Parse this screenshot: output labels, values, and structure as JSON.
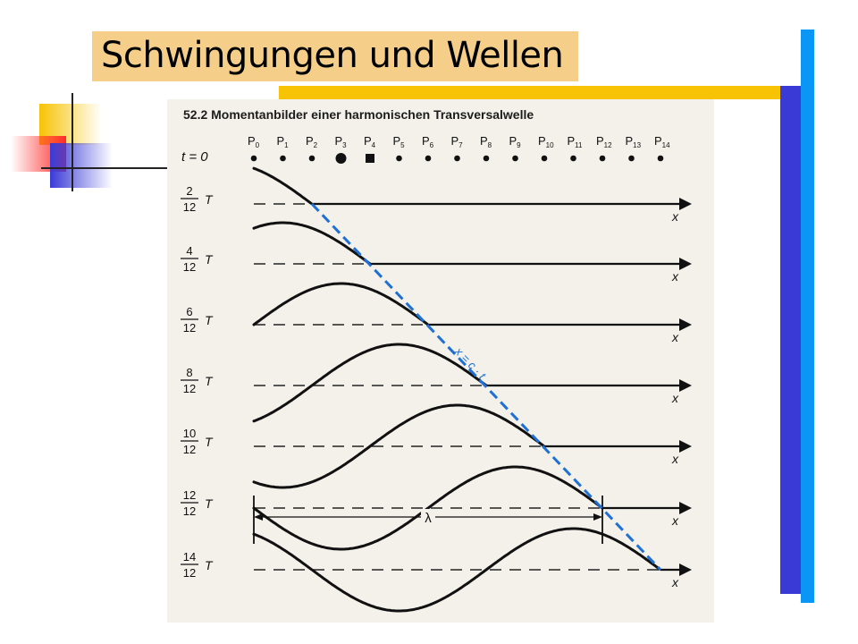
{
  "slide": {
    "title": "Schwingungen und Wellen"
  },
  "figure": {
    "caption": "52.2 Momentanbilder einer harmonischen Transversalwelle",
    "t0_label": "t = 0",
    "points": [
      "P0",
      "P1",
      "P2",
      "P3",
      "P4",
      "P5",
      "P6",
      "P7",
      "P8",
      "P9",
      "P10",
      "P11",
      "P12",
      "P13",
      "P14"
    ],
    "row_labels": [
      {
        "num": "2",
        "den": "12",
        "unit": "T"
      },
      {
        "num": "4",
        "den": "12",
        "unit": "T"
      },
      {
        "num": "6",
        "den": "12",
        "unit": "T"
      },
      {
        "num": "8",
        "den": "12",
        "unit": "T"
      },
      {
        "num": "10",
        "den": "12",
        "unit": "T"
      },
      {
        "num": "12",
        "den": "12",
        "unit": "T"
      },
      {
        "num": "14",
        "den": "12",
        "unit": "T"
      }
    ],
    "axis_label": "x",
    "lambda_label": "λ",
    "front_line_label": "x = c · t",
    "colors": {
      "front_line": "#1e6fd6",
      "curve": "#111111"
    }
  }
}
